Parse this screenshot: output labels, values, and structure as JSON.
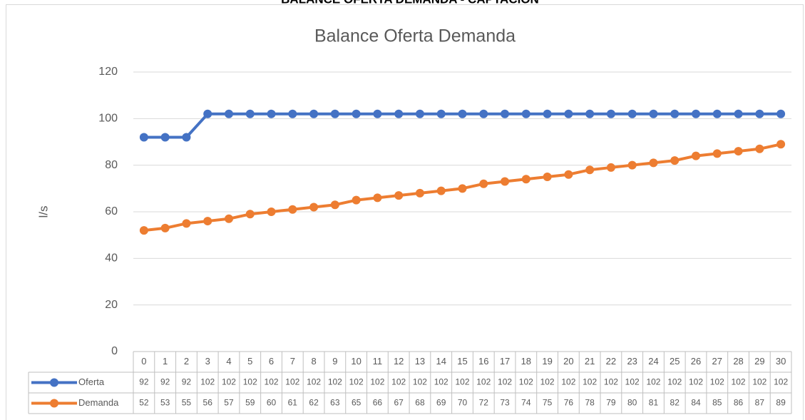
{
  "chart_data": {
    "type": "line",
    "header": "BALANCE OFERTA DEMANDA - CAPTACIÓN",
    "title": "Balance Oferta Demanda",
    "y_label": "l/s",
    "categories": [
      "0",
      "1",
      "2",
      "3",
      "4",
      "5",
      "6",
      "7",
      "8",
      "9",
      "10",
      "11",
      "12",
      "13",
      "14",
      "15",
      "16",
      "17",
      "18",
      "19",
      "20",
      "21",
      "22",
      "23",
      "24",
      "25",
      "26",
      "27",
      "28",
      "29",
      "30"
    ],
    "series": [
      {
        "name": "Oferta",
        "color": "#4472c4",
        "values": [
          92,
          92,
          92,
          102,
          102,
          102,
          102,
          102,
          102,
          102,
          102,
          102,
          102,
          102,
          102,
          102,
          102,
          102,
          102,
          102,
          102,
          102,
          102,
          102,
          102,
          102,
          102,
          102,
          102,
          102,
          102
        ]
      },
      {
        "name": "Demanda",
        "color": "#ed7d31",
        "values": [
          52,
          53,
          55,
          56,
          57,
          59,
          60,
          61,
          62,
          63,
          65,
          66,
          67,
          68,
          69,
          70,
          72,
          73,
          74,
          75,
          76,
          78,
          79,
          80,
          81,
          82,
          84,
          85,
          86,
          87,
          89
        ]
      }
    ],
    "ylim": [
      0,
      120
    ],
    "yticks": [
      0,
      20,
      40,
      60,
      80,
      100,
      120
    ],
    "grid": true,
    "data_table": true
  }
}
